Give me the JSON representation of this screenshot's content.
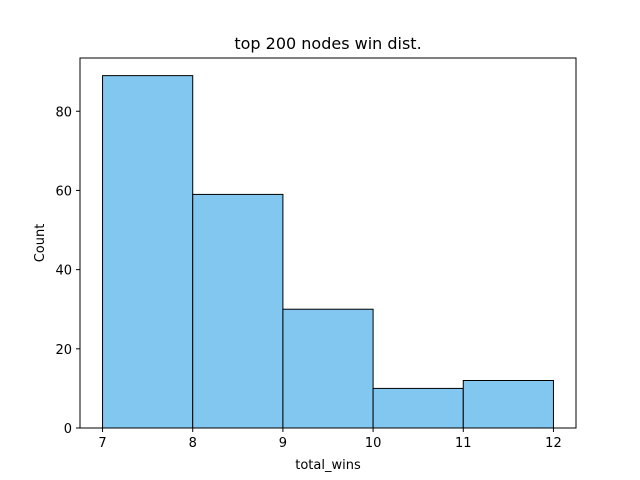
{
  "chart_data": {
    "type": "bar",
    "title": "top 200 nodes win dist.",
    "xlabel": "total_wins",
    "ylabel": "Count",
    "bin_edges": [
      7,
      8,
      9,
      10,
      11,
      12
    ],
    "values": [
      89,
      59,
      30,
      10,
      12
    ],
    "xlim": [
      6.75,
      12.25
    ],
    "ylim": [
      0,
      93.45
    ],
    "xticks": [
      7,
      8,
      9,
      10,
      11,
      12
    ],
    "yticks": [
      0,
      20,
      40,
      60,
      80
    ],
    "bar_color": "#82c7ef",
    "edge_color": "#000000",
    "grid": false,
    "legend": "none"
  }
}
